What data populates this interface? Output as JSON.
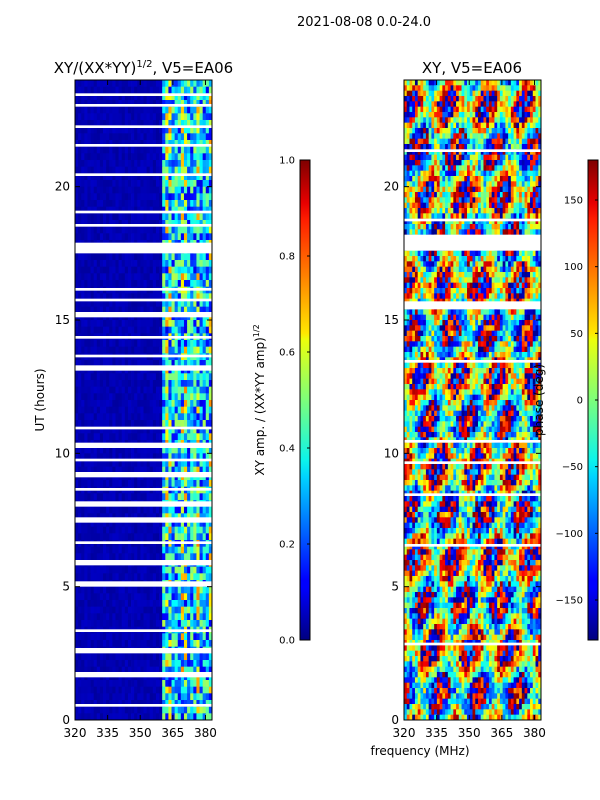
{
  "suptitle": "2021-08-08 0.0-24.0",
  "shared_xlabel": "frequency (MHz)",
  "chart_data": [
    {
      "type": "heatmap",
      "title_main": "XY/(XX*YY)",
      "title_sup": "1/2",
      "title_tail": ", V5=EA06",
      "xlabel": "",
      "ylabel": "UT (hours)",
      "xlim": [
        320,
        383
      ],
      "ylim": [
        0,
        24
      ],
      "xticks": [
        320,
        335,
        350,
        365,
        380
      ],
      "yticks": [
        0,
        5,
        10,
        15,
        20
      ],
      "colorbar": {
        "label_main": "XY amp. / (XX*YY amp)",
        "label_sup": "1/2",
        "range": [
          0.0,
          1.0
        ],
        "ticks": [
          "0.0",
          "0.2",
          "0.4",
          "0.6",
          "0.8",
          "1.0"
        ],
        "tick_values": [
          0.0,
          0.2,
          0.4,
          0.6,
          0.8,
          1.0
        ],
        "colormap": "jet"
      },
      "low_band_mhz": [
        320,
        360
      ],
      "high_band_mhz": [
        360,
        383
      ],
      "low_band_value": 0.03,
      "high_band_value_range": [
        0.1,
        0.75
      ],
      "flagged_hours": [
        [
          0.5,
          0.6
        ],
        [
          1.6,
          1.8
        ],
        [
          2.5,
          2.7
        ],
        [
          3.3,
          3.4
        ],
        [
          5.0,
          5.2
        ],
        [
          5.8,
          6.0
        ],
        [
          6.6,
          6.7
        ],
        [
          7.4,
          7.6
        ],
        [
          8.0,
          8.2
        ],
        [
          8.6,
          8.7
        ],
        [
          9.1,
          9.3
        ],
        [
          9.7,
          9.8
        ],
        [
          10.2,
          10.4
        ],
        [
          10.9,
          11.0
        ],
        [
          13.1,
          13.3
        ],
        [
          13.6,
          13.7
        ],
        [
          14.3,
          14.4
        ],
        [
          15.1,
          15.3
        ],
        [
          15.7,
          15.8
        ],
        [
          16.1,
          16.2
        ],
        [
          17.5,
          17.9
        ],
        [
          18.5,
          18.6
        ],
        [
          19.0,
          19.1
        ],
        [
          20.4,
          20.5
        ],
        [
          21.5,
          21.6
        ],
        [
          22.2,
          22.3
        ],
        [
          23.0,
          23.1
        ],
        [
          23.4,
          23.5
        ]
      ]
    },
    {
      "type": "heatmap",
      "title": "XY, V5=EA06",
      "xlabel": "frequency (MHz)",
      "ylabel": "",
      "xlim": [
        320,
        383
      ],
      "ylim": [
        0,
        24
      ],
      "xticks": [
        320,
        335,
        350,
        365,
        380
      ],
      "yticks": [
        0,
        5,
        10,
        15,
        20
      ],
      "colorbar": {
        "label": "phase (deg)",
        "range": [
          -180,
          180
        ],
        "ticks": [
          "150",
          "100",
          "50",
          "0",
          "−50",
          "−100",
          "−150"
        ],
        "tick_values": [
          150,
          100,
          50,
          0,
          -50,
          -100,
          -150
        ],
        "colormap": "jet"
      },
      "phase_range_deg": [
        -180,
        180
      ],
      "flagged_hours": [
        [
          2.8,
          2.9
        ],
        [
          6.5,
          6.6
        ],
        [
          8.4,
          8.5
        ],
        [
          9.6,
          9.7
        ],
        [
          10.4,
          10.5
        ],
        [
          13.4,
          13.5
        ],
        [
          15.4,
          15.7
        ],
        [
          17.6,
          18.2
        ],
        [
          18.7,
          18.8
        ],
        [
          21.3,
          21.4
        ]
      ]
    }
  ]
}
